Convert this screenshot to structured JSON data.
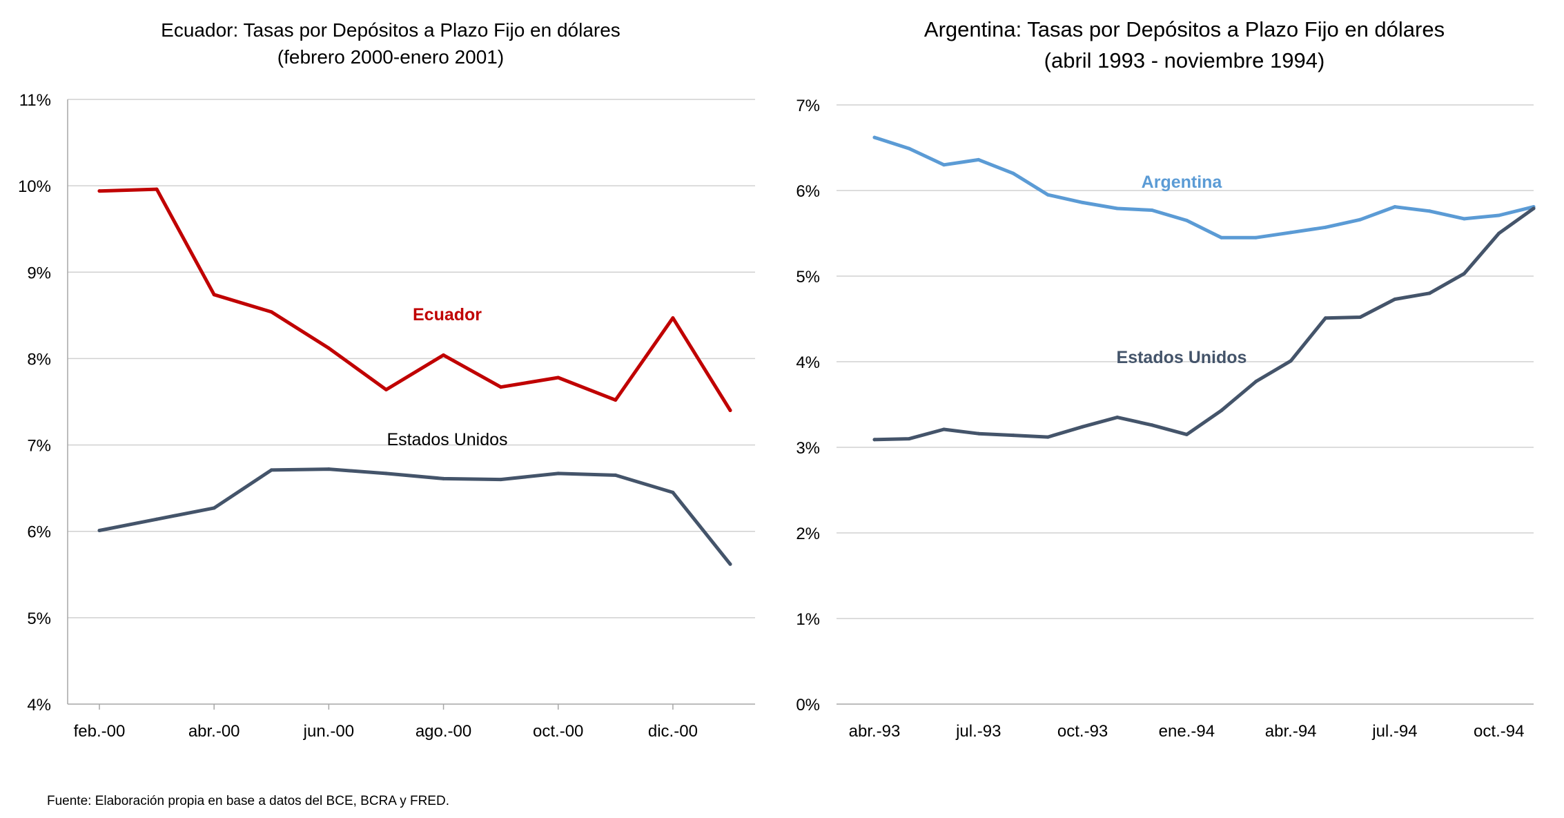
{
  "source_note": "Fuente: Elaboración propia en base a datos del  BCE, BCRA y FRED.",
  "chart_data": [
    {
      "type": "line",
      "title": "Ecuador: Tasas por Depósitos a Plazo Fijo en dólares",
      "subtitle": "(febrero 2000-enero 2001)",
      "xlabel": "",
      "ylabel": "",
      "x": [
        "feb.-00",
        "mar.-00",
        "abr.-00",
        "may.-00",
        "jun.-00",
        "jul.-00",
        "ago.-00",
        "sep.-00",
        "oct.-00",
        "nov.-00",
        "dic.-00",
        "ene.-01"
      ],
      "x_tick_labels": [
        "feb.-00",
        "abr.-00",
        "jun.-00",
        "ago.-00",
        "oct.-00",
        "dic.-00"
      ],
      "y_tick_labels": [
        "4%",
        "5%",
        "6%",
        "7%",
        "8%",
        "9%",
        "10%",
        "11%"
      ],
      "ylim": [
        4,
        11
      ],
      "y_unit": "%",
      "grid": true,
      "legend": "inline labels",
      "series": [
        {
          "name": "Ecuador",
          "color": "#c00000",
          "values": [
            9.94,
            9.96,
            8.74,
            8.54,
            8.12,
            7.64,
            8.04,
            7.67,
            7.78,
            7.52,
            8.47,
            7.4
          ]
        },
        {
          "name": "Estados Unidos",
          "color": "#44546a",
          "values": [
            6.01,
            6.14,
            6.27,
            6.71,
            6.72,
            6.67,
            6.61,
            6.6,
            6.67,
            6.65,
            6.45,
            5.62
          ]
        }
      ]
    },
    {
      "type": "line",
      "title": "Argentina: Tasas por Depósitos a Plazo Fijo en dólares",
      "subtitle": "(abril 1993 - noviembre 1994)",
      "xlabel": "",
      "ylabel": "",
      "x": [
        "abr.-93",
        "may.-93",
        "jun.-93",
        "jul.-93",
        "ago.-93",
        "sep.-93",
        "oct.-93",
        "nov.-93",
        "dic.-93",
        "ene.-94",
        "feb.-94",
        "mar.-94",
        "abr.-94",
        "may.-94",
        "jun.-94",
        "jul.-94",
        "ago.-94",
        "sep.-94",
        "oct.-94",
        "nov.-94"
      ],
      "x_tick_labels": [
        "abr.-93",
        "jul.-93",
        "oct.-93",
        "ene.-94",
        "abr.-94",
        "jul.-94",
        "oct.-94"
      ],
      "y_tick_labels": [
        "0%",
        "1%",
        "2%",
        "3%",
        "4%",
        "5%",
        "6%",
        "7%"
      ],
      "ylim": [
        0,
        7
      ],
      "y_unit": "%",
      "grid": true,
      "legend": "inline labels",
      "series": [
        {
          "name": "Argentina",
          "color": "#5b9bd5",
          "values": [
            6.62,
            6.49,
            6.3,
            6.36,
            6.2,
            5.95,
            5.86,
            5.79,
            5.77,
            5.65,
            5.45,
            5.45,
            5.51,
            5.57,
            5.66,
            5.81,
            5.76,
            5.67,
            5.71,
            5.81
          ]
        },
        {
          "name": "Estados Unidos",
          "color": "#44546a",
          "values": [
            3.09,
            3.1,
            3.21,
            3.16,
            3.14,
            3.12,
            3.24,
            3.35,
            3.26,
            3.15,
            3.43,
            3.77,
            4.01,
            4.51,
            4.52,
            4.73,
            4.8,
            5.03,
            5.5,
            5.79
          ]
        }
      ]
    }
  ]
}
